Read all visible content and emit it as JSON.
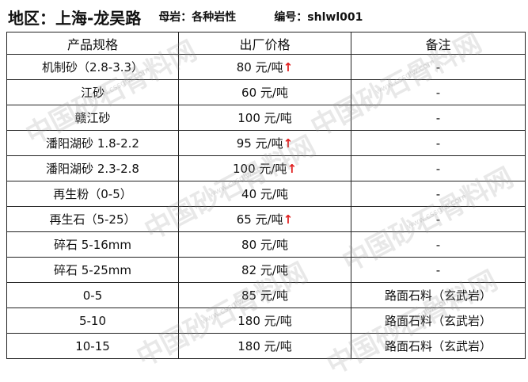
{
  "header": {
    "region": "地区：上海-龙吴路",
    "parent_rock": "母岩：各种岩性",
    "code": "编号：shlwl001"
  },
  "table": {
    "columns": [
      "产品规格",
      "出厂价格",
      "备注"
    ],
    "rows": [
      {
        "spec": "机制砂（2.8-3.3）",
        "price": "80 元/吨",
        "trend": "↑",
        "note": "-"
      },
      {
        "spec": "江砂",
        "price": "60 元/吨",
        "trend": "",
        "note": "-"
      },
      {
        "spec": "赣江砂",
        "price": "100 元/吨",
        "trend": "",
        "note": "-"
      },
      {
        "spec": "潘阳湖砂 1.8-2.2",
        "price": "95 元/吨",
        "trend": "↑",
        "note": "-"
      },
      {
        "spec": "潘阳湖砂 2.3-2.8",
        "price": "100 元/吨",
        "trend": "↑",
        "note": "-"
      },
      {
        "spec": "再生粉（0-5）",
        "price": "40 元/吨",
        "trend": "",
        "note": "-"
      },
      {
        "spec": "再生石（5-25）",
        "price": "65 元/吨",
        "trend": "↑",
        "note": "-"
      },
      {
        "spec": "碎石 5-16mm",
        "price": "80 元/吨",
        "trend": "",
        "note": "-"
      },
      {
        "spec": "碎石 5-25mm",
        "price": "82 元/吨",
        "trend": "",
        "note": "-"
      },
      {
        "spec": "0-5",
        "price": "85 元/吨",
        "trend": "",
        "note": "路面石料（玄武岩）"
      },
      {
        "spec": "5-10",
        "price": "180 元/吨",
        "trend": "",
        "note": "路面石料（玄武岩）"
      },
      {
        "spec": "10-15",
        "price": "180 元/吨",
        "trend": "",
        "note": "路面石料（玄武岩）"
      }
    ]
  },
  "watermark": {
    "text": "中国砂石骨料网",
    "url": "www.cssglw.com"
  },
  "colors": {
    "up_arrow": "#e02020"
  }
}
